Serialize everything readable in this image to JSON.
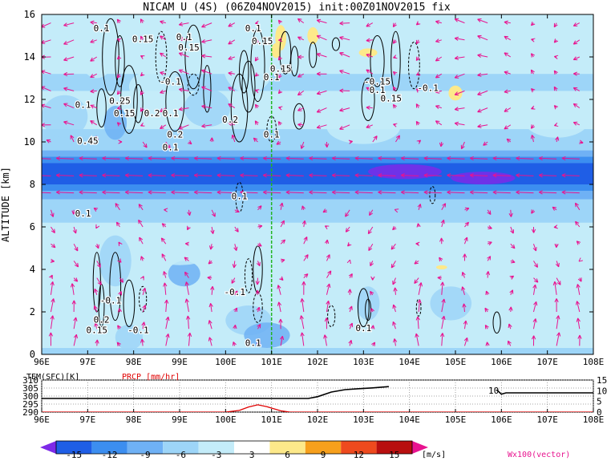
{
  "chart_data": [
    {
      "type": "heatmap",
      "title": "NICAM U (4S) (06Z04NOV2015) init:00Z01NOV2015 fix",
      "ylabel": "ALTITUDE [km]",
      "xlabel": "",
      "x_ticks": [
        "96E",
        "97E",
        "98E",
        "99E",
        "100E",
        "101E",
        "102E",
        "103E",
        "104E",
        "105E",
        "106E",
        "107E",
        "108E"
      ],
      "y_ticks": [
        "0",
        "2",
        "4",
        "6",
        "8",
        "10",
        "12",
        "14",
        "16"
      ],
      "xlim": [
        96,
        108
      ],
      "ylim": [
        0,
        16
      ],
      "reference_longitude": 101,
      "shading_levels": [
        -15,
        -12,
        -9,
        -6,
        -3,
        3,
        6,
        9,
        12,
        15
      ],
      "shading_colors": [
        "#7d2ae8",
        "#1f5ee6",
        "#3c8ef0",
        "#6fb1f5",
        "#9dd5f8",
        "#c4ecf9",
        "#ffffff",
        "#fde98a",
        "#f7a01c",
        "#ee4a1e",
        "#b80f0f",
        "#e8138f"
      ],
      "colorbar_unit": "[m/s]",
      "vector_label": "Wx100(vector)",
      "contour_labels": [
        {
          "text": "0.1",
          "x": 97.3,
          "y": 15.2
        },
        {
          "text": "0.15",
          "x": 98.2,
          "y": 14.7
        },
        {
          "text": "0.1",
          "x": 99.1,
          "y": 14.8
        },
        {
          "text": "0.15",
          "x": 99.2,
          "y": 14.3
        },
        {
          "text": "-0.1",
          "x": 98.8,
          "y": 12.7
        },
        {
          "text": "0.25",
          "x": 97.7,
          "y": 11.8
        },
        {
          "text": "0.1",
          "x": 96.9,
          "y": 11.6
        },
        {
          "text": "0.15",
          "x": 97.8,
          "y": 11.2
        },
        {
          "text": "0.2",
          "x": 98.4,
          "y": 11.2
        },
        {
          "text": "0.1",
          "x": 98.8,
          "y": 11.2
        },
        {
          "text": "0.2",
          "x": 98.9,
          "y": 10.2
        },
        {
          "text": "0.1",
          "x": 98.8,
          "y": 9.6
        },
        {
          "text": "0.45",
          "x": 97.0,
          "y": 9.9
        },
        {
          "text": "0.1",
          "x": 100.6,
          "y": 15.2
        },
        {
          "text": "0.15",
          "x": 100.8,
          "y": 14.6
        },
        {
          "text": "0.2",
          "x": 100.1,
          "y": 10.9
        },
        {
          "text": "0.15",
          "x": 101.2,
          "y": 13.3
        },
        {
          "text": "0.1",
          "x": 101.0,
          "y": 12.9
        },
        {
          "text": "0.1",
          "x": 101.0,
          "y": 10.2
        },
        {
          "text": "-0.15",
          "x": 103.3,
          "y": 12.7
        },
        {
          "text": "0.1",
          "x": 103.3,
          "y": 12.3
        },
        {
          "text": "0.15",
          "x": 103.6,
          "y": 11.9
        },
        {
          "text": "-0.1",
          "x": 104.4,
          "y": 12.4
        },
        {
          "text": "0.1",
          "x": 100.3,
          "y": 7.3
        },
        {
          "text": "0.1",
          "x": 96.9,
          "y": 6.5
        },
        {
          "text": "-0.1",
          "x": 100.2,
          "y": 2.8
        },
        {
          "text": "0.1",
          "x": 100.6,
          "y": 0.4
        },
        {
          "text": "-0.1",
          "x": 97.5,
          "y": 2.4
        },
        {
          "text": "0.2",
          "x": 97.3,
          "y": 1.5
        },
        {
          "text": "0.15",
          "x": 97.2,
          "y": 1.0
        },
        {
          "text": "-0.1",
          "x": 98.1,
          "y": 1.0
        },
        {
          "text": "0.1",
          "x": 103.0,
          "y": 1.1
        }
      ]
    },
    {
      "type": "line",
      "title": "",
      "left_label": "TEM(SFC)[K]",
      "right_label": "PRCP [mm/hr]",
      "x_ticks": [
        "96E",
        "97E",
        "98E",
        "99E",
        "100E",
        "101E",
        "102E",
        "103E",
        "104E",
        "105E",
        "106E",
        "107E",
        "108E"
      ],
      "left_axis_ticks": [
        "310",
        "305",
        "300",
        "295",
        "290"
      ],
      "right_axis_ticks": [
        "15",
        "10",
        "5",
        "0"
      ],
      "left_ylim": [
        290,
        310
      ],
      "right_ylim": [
        0,
        15
      ],
      "curve_label": "10",
      "series": [
        {
          "name": "TEM(SFC)[K]",
          "color": "#000000",
          "x": [
            96,
            97,
            98,
            99,
            100,
            101,
            101.8,
            102,
            102.3,
            102.6,
            102.9,
            103.2,
            103.55
          ],
          "y": [
            298.5,
            298.5,
            298.5,
            298.5,
            298.6,
            298.5,
            298.5,
            299.6,
            302.5,
            304.0,
            304.6,
            305.1,
            305.9
          ]
        },
        {
          "name": "TEM(SFC)[K]",
          "color": "#000000",
          "x": [
            105.9,
            106.0,
            106.1,
            107,
            108
          ],
          "y": [
            303.8,
            301.2,
            302.0,
            302.0,
            302.0
          ]
        },
        {
          "name": "PRCP [mm/hr]",
          "color": "#e00000",
          "x": [
            96,
            100.0,
            100.3,
            100.5,
            100.7,
            100.9,
            101.2,
            101.4,
            108
          ],
          "y": [
            0,
            0,
            0.8,
            2.4,
            3.4,
            2.5,
            0.6,
            0,
            0
          ]
        }
      ]
    }
  ]
}
